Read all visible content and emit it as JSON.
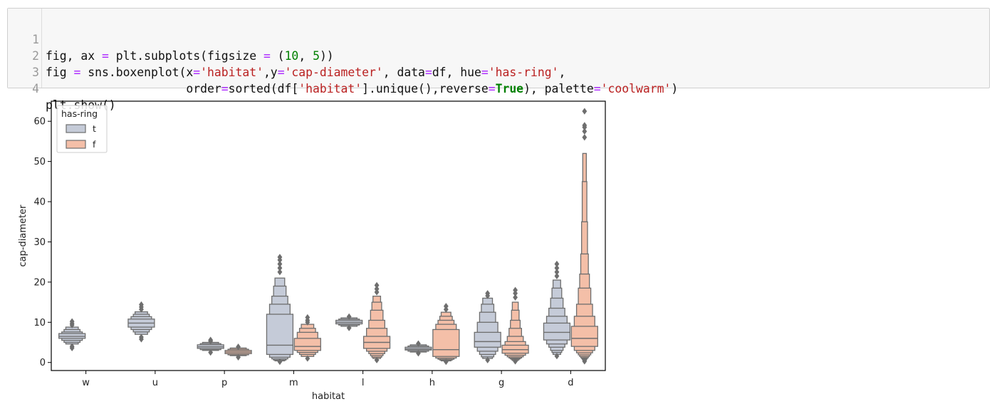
{
  "notebook": {
    "code_lines": [
      {
        "num": "1",
        "text": "fig, ax = plt.subplots(figsize = (10, 5))"
      },
      {
        "num": "2",
        "text": "fig = sns.boxenplot(x='habitat',y='cap-diameter', data=df, hue='has-ring',"
      },
      {
        "num": "3",
        "text": "                    order=sorted(df['habitat'].unique(),reverse=True), palette='coolwarm')"
      },
      {
        "num": "4",
        "text": "plt.show()"
      }
    ]
  },
  "chart_data": {
    "type": "boxen",
    "xlabel": "habitat",
    "ylabel": "cap-diameter",
    "categories": [
      "w",
      "u",
      "p",
      "m",
      "l",
      "h",
      "g",
      "d"
    ],
    "ylim": [
      -2,
      65
    ],
    "yticks": [
      0,
      10,
      20,
      30,
      40,
      50,
      60
    ],
    "grid": false,
    "legend": {
      "title": "has-ring",
      "placement": "top-left"
    },
    "series": [
      {
        "name": "t",
        "color": "#c5cbd8",
        "boxes": [
          {
            "category": "w",
            "median": 6.5,
            "boxes": [
              [
                6,
                7.2
              ],
              [
                5.5,
                7.6
              ],
              [
                5,
                8.2
              ],
              [
                4.6,
                8.8
              ]
            ],
            "outliers": [
              3.6,
              4.0,
              9.3,
              9.7,
              10.2
            ]
          },
          {
            "category": "u",
            "median": 9.8,
            "boxes": [
              [
                8.8,
                10.8
              ],
              [
                8.2,
                11.4
              ],
              [
                7.6,
                12
              ],
              [
                7,
                12.6
              ]
            ],
            "outliers": [
              5.8,
              6.3,
              13.2,
              13.8,
              14.4
            ]
          },
          {
            "category": "p",
            "median": 3.9,
            "boxes": [
              [
                3.5,
                4.4
              ],
              [
                3.2,
                4.7
              ],
              [
                3,
                5
              ]
            ],
            "outliers": [
              2.5,
              5.3,
              5.6
            ]
          },
          {
            "category": "m",
            "median": 4.3,
            "boxes": [
              [
                2,
                12
              ],
              [
                1.3,
                14.5
              ],
              [
                0.9,
                16.5
              ],
              [
                0.6,
                19
              ],
              [
                0.4,
                21
              ]
            ],
            "outliers": [
              0.2,
              22.5,
              23.5,
              24.5,
              25.5,
              26.2
            ]
          },
          {
            "category": "l",
            "median": 10,
            "boxes": [
              [
                9.6,
                10.5
              ],
              [
                9.3,
                10.8
              ],
              [
                9,
                11.1
              ]
            ],
            "outliers": [
              8.6,
              11.4
            ]
          },
          {
            "category": "h",
            "median": 3.4,
            "boxes": [
              [
                3.1,
                3.8
              ],
              [
                2.8,
                4.1
              ],
              [
                2.6,
                4.4
              ]
            ],
            "outliers": [
              2.3,
              4.7
            ]
          },
          {
            "category": "g",
            "median": 5.2,
            "boxes": [
              [
                3.8,
                7.5
              ],
              [
                2.8,
                10
              ],
              [
                2,
                12.5
              ],
              [
                1.4,
                14.5
              ],
              [
                1,
                16
              ]
            ],
            "outliers": [
              0.6,
              16.6,
              17.2
            ]
          },
          {
            "category": "d",
            "median": 7.5,
            "boxes": [
              [
                5.6,
                9.8
              ],
              [
                4.6,
                11.5
              ],
              [
                3.8,
                13.5
              ],
              [
                3,
                16
              ],
              [
                2.5,
                18.5
              ],
              [
                2,
                20.5
              ]
            ],
            "outliers": [
              1.6,
              21.5,
              22.5,
              23.5,
              24.5
            ]
          }
        ]
      },
      {
        "name": "f",
        "color": "#f4bfa8",
        "boxes": [
          {
            "category": "p",
            "median": 2.6,
            "boxes": [
              [
                2.2,
                3
              ],
              [
                1.9,
                3.3
              ],
              [
                1.7,
                3.6
              ]
            ],
            "outliers": [
              1.3,
              3.9
            ]
          },
          {
            "category": "m",
            "median": 4,
            "boxes": [
              [
                3,
                6
              ],
              [
                2.5,
                7.5
              ],
              [
                2,
                8.5
              ],
              [
                1.5,
                9.5
              ]
            ],
            "outliers": [
              1,
              10,
              10.5,
              11.2
            ]
          },
          {
            "category": "l",
            "median": 5,
            "boxes": [
              [
                3.5,
                6.5
              ],
              [
                2.8,
                8.5
              ],
              [
                2.2,
                10.5
              ],
              [
                1.7,
                13
              ],
              [
                1.3,
                15
              ],
              [
                1,
                16.5
              ]
            ],
            "outliers": [
              0.6,
              17.5,
              18.3,
              19.2
            ]
          },
          {
            "category": "h",
            "median": 3.2,
            "boxes": [
              [
                1.5,
                8.2
              ],
              [
                1.1,
                9.5
              ],
              [
                0.8,
                10.5
              ],
              [
                0.6,
                11.5
              ],
              [
                0.4,
                12.5
              ]
            ],
            "outliers": [
              0.2,
              13.2,
              14
            ]
          },
          {
            "category": "g",
            "median": 3.2,
            "boxes": [
              [
                2.3,
                4.3
              ],
              [
                1.8,
                5.2
              ],
              [
                1.4,
                6.5
              ],
              [
                1.1,
                8.5
              ],
              [
                0.9,
                10.5
              ],
              [
                0.7,
                13
              ],
              [
                0.5,
                15
              ]
            ],
            "outliers": [
              0.3,
              16.2,
              17.2,
              18
            ]
          },
          {
            "category": "d",
            "median": 6,
            "boxes": [
              [
                4,
                9
              ],
              [
                3,
                11.5
              ],
              [
                2.4,
                14.5
              ],
              [
                1.9,
                18.5
              ],
              [
                1.5,
                22
              ],
              [
                1.2,
                27
              ],
              [
                1,
                35
              ],
              [
                0.8,
                45
              ],
              [
                0.6,
                52
              ]
            ],
            "outliers": [
              0.3,
              56,
              57.5,
              58.5,
              59,
              62.5
            ]
          }
        ]
      }
    ]
  }
}
